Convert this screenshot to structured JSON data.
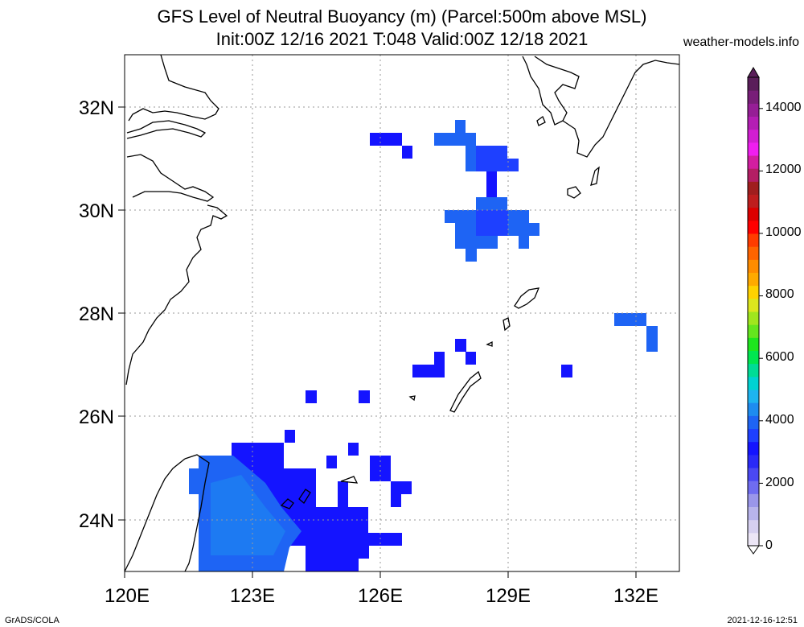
{
  "header": {
    "title_line1": "GFS Level of Neutral Buoyancy (m) (Parcel:500m above MSL)",
    "title_line2": "Init:00Z 12/16 2021 T:048 Valid:00Z 12/18 2021",
    "site": "weather-models.info"
  },
  "map": {
    "lon_range": [
      120,
      133
    ],
    "lat_range": [
      23,
      33
    ],
    "lon_ticks": [
      "120E",
      "123E",
      "126E",
      "129E",
      "132E"
    ],
    "lat_ticks": [
      "32N",
      "30N",
      "28N",
      "26N",
      "24N"
    ],
    "grid": true
  },
  "colorbar": {
    "labels": [
      "14000",
      "12000",
      "10000",
      "8000",
      "6000",
      "4000",
      "2000",
      "0"
    ],
    "colors": [
      "#ece6f6",
      "#d6d0f0",
      "#b8b4ec",
      "#9a96ea",
      "#6f6cf0",
      "#4a48f2",
      "#2a2af8",
      "#1414ff",
      "#1e40ff",
      "#1e64f4",
      "#1e8cf0",
      "#1eb4f0",
      "#00d2d2",
      "#00dc96",
      "#00e650",
      "#1ee61e",
      "#64e61e",
      "#a0e61e",
      "#dce61e",
      "#ffd200",
      "#ffaa00",
      "#ff8c00",
      "#ff6400",
      "#ff3c00",
      "#ff0000",
      "#dc0000",
      "#be1e1e",
      "#a01e1e",
      "#b41e64",
      "#d21ea0",
      "#f01ef0",
      "#d21ed2",
      "#b41eb4",
      "#961e96",
      "#781e78",
      "#5a1e5a"
    ]
  },
  "footer": {
    "left": "GrADS/COLA",
    "right": "2021-12-16-12:51"
  }
}
